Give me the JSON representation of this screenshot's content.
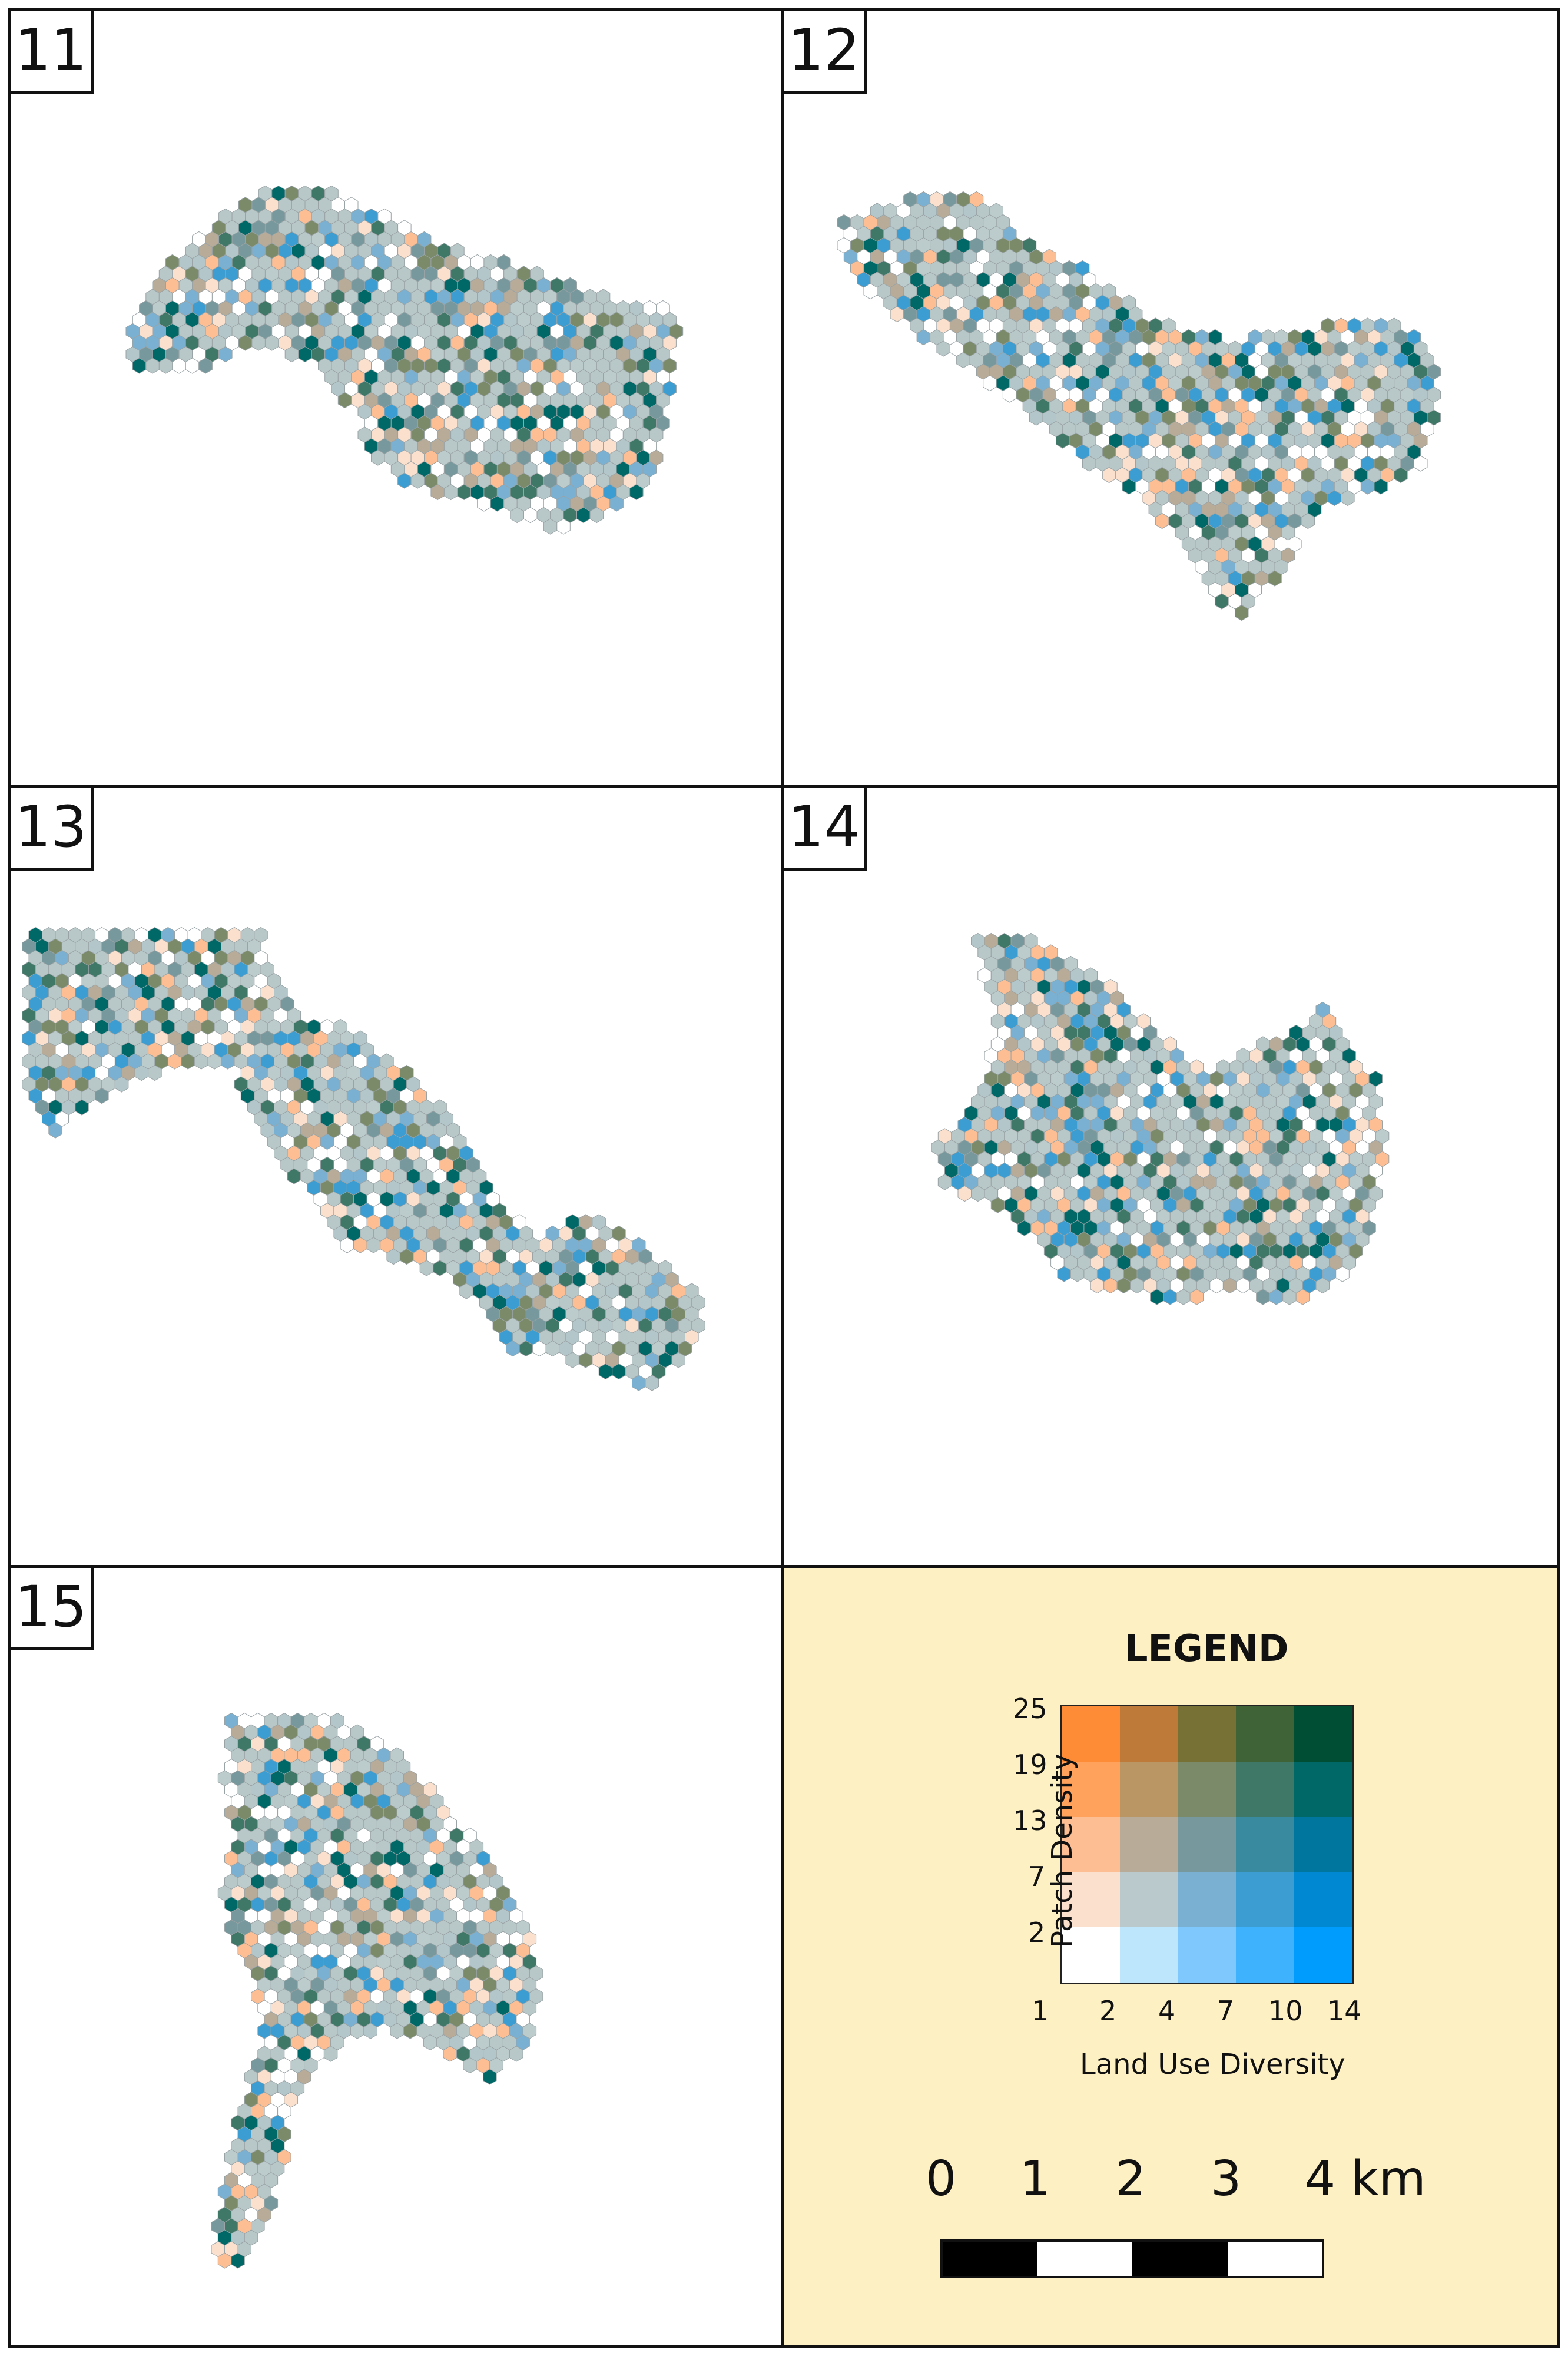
{
  "panels": [
    {
      "number": "11"
    },
    {
      "number": "12"
    },
    {
      "number": "13"
    },
    {
      "number": "14"
    },
    {
      "number": "15"
    }
  ],
  "legend": {
    "title": "LEGEND",
    "y_axis_title": "Patch Density",
    "x_axis_title": "Land Use Diversity",
    "y_ticks": [
      "2",
      "7",
      "13",
      "19",
      "25"
    ],
    "x_ticks": [
      "1",
      "2",
      "4",
      "7",
      "10",
      "14"
    ],
    "colors_rows_top_to_bottom": [
      [
        "#fe8b35",
        "#bd7a38",
        "#787136",
        "#3f6337",
        "#004e34"
      ],
      [
        "#fea25c",
        "#ba9664",
        "#7b8b6a",
        "#3f7866",
        "#006867"
      ],
      [
        "#fdbe93",
        "#b8ab98",
        "#77999d",
        "#3a8a9f",
        "#00769f"
      ],
      [
        "#fbe0ce",
        "#bac9cb",
        "#7ab1d2",
        "#3b9dd2",
        "#0088d2"
      ],
      [
        "#ffffff",
        "#bde6fc",
        "#7ec8fd",
        "#3fb2fe",
        "#009cfd"
      ]
    ]
  },
  "scale_bar": {
    "labels": [
      "0",
      "1",
      "2",
      "3",
      "4 km"
    ]
  }
}
